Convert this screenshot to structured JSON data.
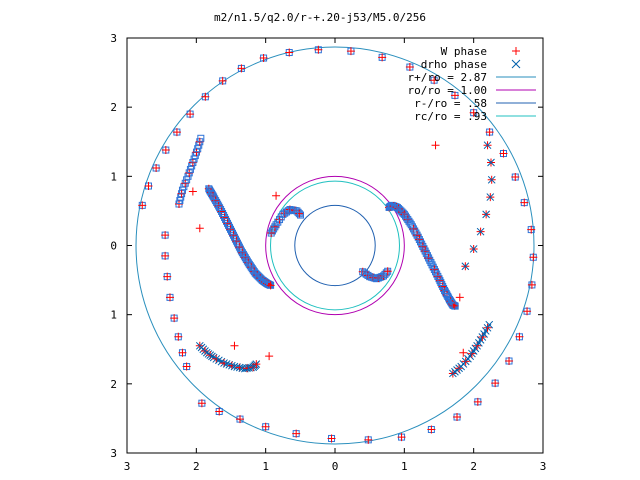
{
  "chart_data": {
    "type": "scatter",
    "title": "m2/n1.5/q2.0/r-+.20-j53/M5.0/256",
    "xlim": [
      -3,
      3
    ],
    "ylim": [
      -3,
      3
    ],
    "x_tick_values": [
      -3,
      -2,
      -1,
      0,
      1,
      2,
      3
    ],
    "x_tick_labels": [
      "3",
      "2",
      "1",
      "0",
      "1",
      "2",
      "3"
    ],
    "y_tick_values": [
      3,
      2,
      1,
      0,
      -1,
      -2,
      -3
    ],
    "y_tick_labels": [
      "3",
      "2",
      "1",
      "0",
      "1",
      "2",
      "3"
    ],
    "legend_position": "top-right",
    "legend": [
      {
        "label": "W phase",
        "kind": "point-plus",
        "color": "#ff0000"
      },
      {
        "label": "drho phase",
        "kind": "point-x",
        "color": "#0060ad"
      },
      {
        "label": "r+/ro = 2.87",
        "kind": "line",
        "color": "#2a8fbd"
      },
      {
        "label": "ro/ro = 1.00",
        "kind": "line",
        "color": "#b000b0"
      },
      {
        "label": "r-/ro = .58",
        "kind": "line",
        "color": "#2060b0"
      },
      {
        "label": "rc/ro = .93",
        "kind": "line",
        "color": "#20c0c0"
      }
    ],
    "circles": [
      {
        "name": "r+/ro",
        "radius": 2.87,
        "color": "#2a8fbd"
      },
      {
        "name": "ro/ro",
        "radius": 1.0,
        "color": "#b000b0"
      },
      {
        "name": "r-/ro",
        "radius": 0.58,
        "color": "#2060b0"
      },
      {
        "name": "rc/ro",
        "radius": 0.93,
        "color": "#20c0c0"
      }
    ],
    "outer_x": [
      -2.78,
      -2.69,
      -2.58,
      -2.44,
      -2.28,
      -2.09,
      -1.87,
      -1.62,
      -1.35,
      -1.03,
      -0.66,
      -0.24,
      0.23,
      0.68,
      1.08,
      1.43,
      1.73,
      2.0,
      2.23,
      2.43,
      2.6,
      2.73,
      2.83,
      2.86,
      2.84,
      2.77,
      2.66,
      2.51,
      2.31,
      2.06,
      1.76,
      1.39,
      0.96,
      0.48,
      -0.05,
      -0.56,
      -1.0,
      -1.37,
      -1.67,
      -1.92
    ],
    "outer_y": [
      0.58,
      0.86,
      1.12,
      1.38,
      1.64,
      1.9,
      2.15,
      2.38,
      2.56,
      2.71,
      2.79,
      2.83,
      2.81,
      2.72,
      2.58,
      2.39,
      2.17,
      1.92,
      1.64,
      1.33,
      0.99,
      0.62,
      0.23,
      -0.17,
      -0.57,
      -0.95,
      -1.32,
      -1.67,
      -1.99,
      -2.26,
      -2.48,
      -2.66,
      -2.77,
      -2.81,
      -2.79,
      -2.72,
      -2.62,
      -2.51,
      -2.4,
      -2.28
    ],
    "inner_left_x": [
      -2.45,
      -2.45,
      -2.42,
      -2.38,
      -2.32,
      -2.26,
      -2.2,
      -2.14
    ],
    "inner_left_y": [
      0.15,
      -0.15,
      -0.45,
      -0.75,
      -1.05,
      -1.32,
      -1.55,
      -1.75
    ],
    "inner_right_x": [
      2.2,
      2.25,
      2.26,
      2.24,
      2.18,
      2.1,
      2.0,
      1.88
    ],
    "inner_right_y": [
      1.45,
      1.2,
      0.95,
      0.7,
      0.45,
      0.2,
      -0.05,
      -0.3
    ],
    "spiral_right_x": [
      0.78,
      0.82,
      0.9,
      1.0,
      1.1,
      1.2,
      1.3,
      1.4,
      1.5,
      1.58,
      1.65,
      1.7,
      1.74
    ],
    "spiral_right_y": [
      0.55,
      0.58,
      0.55,
      0.45,
      0.3,
      0.12,
      -0.08,
      -0.28,
      -0.48,
      -0.65,
      -0.78,
      -0.86,
      -0.88
    ],
    "spiral_left_x": [
      -1.82,
      -1.75,
      -1.65,
      -1.55,
      -1.45,
      -1.35,
      -1.25,
      -1.15,
      -1.05,
      -0.98,
      -0.92
    ],
    "spiral_left_y": [
      0.82,
      0.7,
      0.52,
      0.32,
      0.12,
      -0.08,
      -0.25,
      -0.4,
      -0.5,
      -0.55,
      -0.58
    ],
    "arc_top_x": [
      -0.92,
      -0.85,
      -0.75,
      -0.65,
      -0.55,
      -0.48
    ],
    "arc_top_y": [
      0.18,
      0.3,
      0.45,
      0.52,
      0.5,
      0.42
    ],
    "arc_inner_right_x": [
      0.4,
      0.5,
      0.6,
      0.7,
      0.78
    ],
    "arc_inner_right_y": [
      -0.38,
      -0.45,
      -0.48,
      -0.44,
      -0.35
    ],
    "arc_lower_left_x": [
      -1.95,
      -1.85,
      -1.75,
      -1.6,
      -1.45,
      -1.3,
      -1.18,
      -1.12
    ],
    "arc_lower_left_y": [
      -1.45,
      -1.55,
      -1.62,
      -1.7,
      -1.75,
      -1.78,
      -1.76,
      -1.7
    ],
    "arc_upper_left_x": [
      -2.25,
      -2.2,
      -2.12,
      -2.05,
      -1.98,
      -1.92
    ],
    "arc_upper_left_y": [
      0.6,
      0.8,
      1.0,
      1.2,
      1.4,
      1.6
    ],
    "arc_lower_right_x": [
      1.7,
      1.82,
      1.95,
      2.05,
      2.15,
      2.25
    ],
    "arc_lower_right_y": [
      -1.85,
      -1.75,
      -1.6,
      -1.45,
      -1.28,
      -1.1
    ],
    "strays_x": [
      -0.85,
      -1.95,
      -1.45,
      1.8,
      1.45,
      -2.05,
      -0.95,
      1.85
    ],
    "strays_y": [
      0.72,
      0.25,
      -1.45,
      -0.75,
      1.45,
      0.78,
      -1.6,
      -1.55
    ]
  }
}
